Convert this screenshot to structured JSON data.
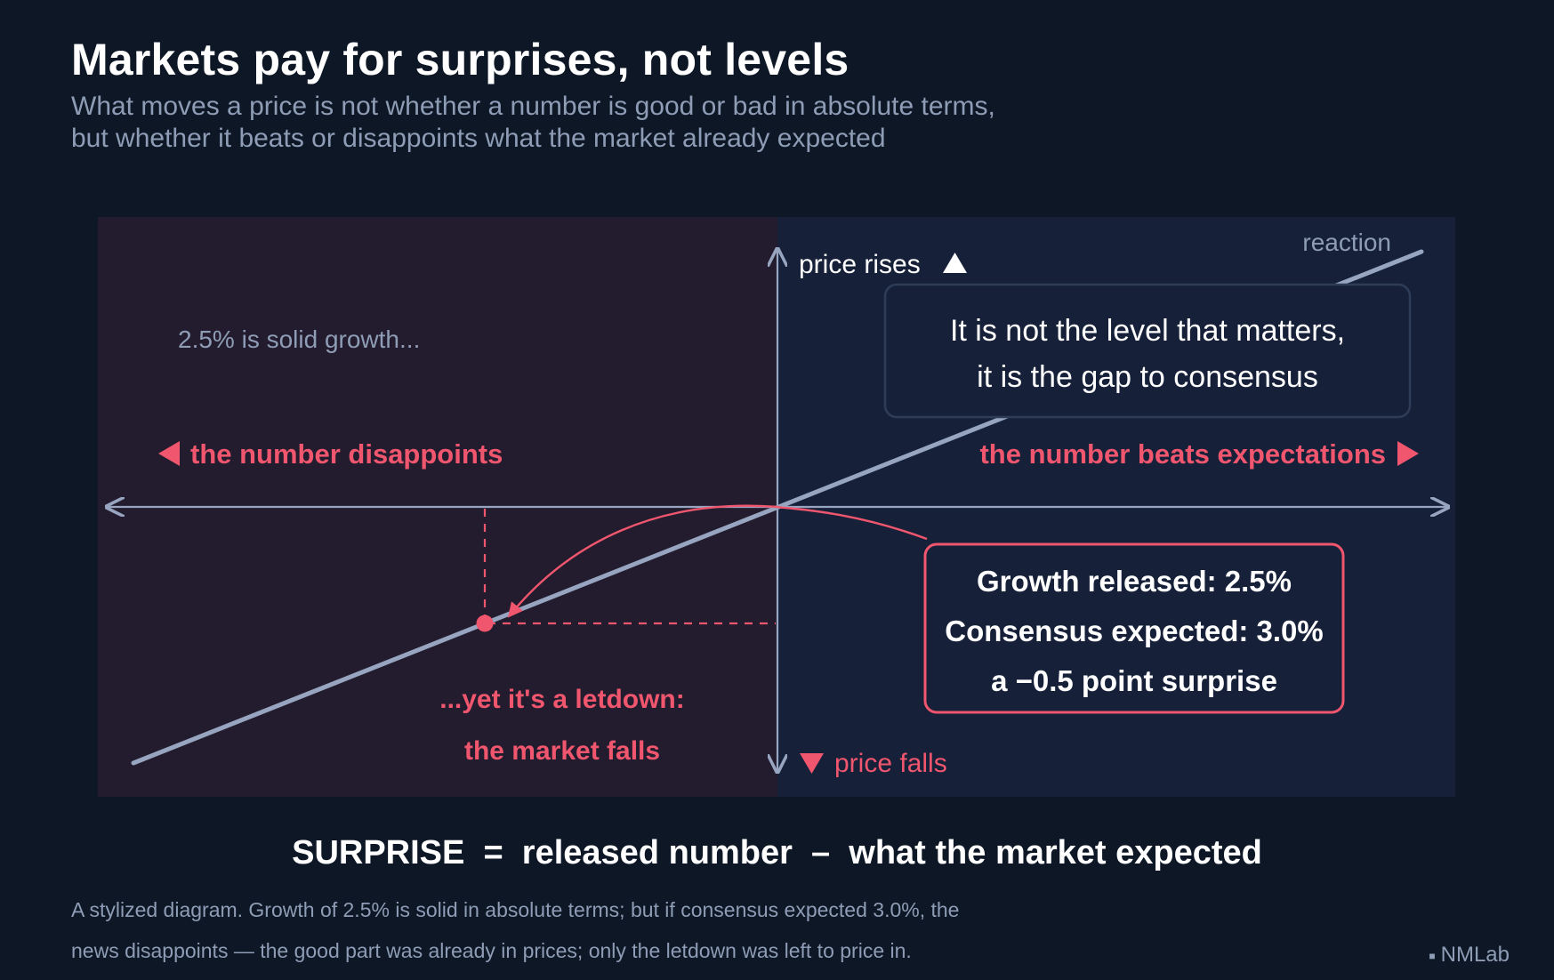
{
  "header": {
    "title": "Markets pay for surprises, not levels",
    "subtitle_lines": [
      "What moves a price is not whether a number is good or bad in absolute terms,",
      "but whether it beats or disappoints what the market already expected"
    ]
  },
  "diagram": {
    "axis_labels": {
      "price_rises": "price rises",
      "price_falls": "price falls",
      "reaction": "reaction"
    },
    "left_zone": {
      "note": "2.5% is solid growth...",
      "direction": "the number disappoints",
      "outcome_lines": [
        "...yet it's a letdown:",
        "the market falls"
      ]
    },
    "right_zone": {
      "direction": "the number beats expectations",
      "callout_lines": [
        "It is not the level that matters,",
        "it is the gap to consensus"
      ]
    },
    "info_box_lines": [
      "Growth released: 2.5%",
      "Consensus expected: 3.0%",
      "a −0.5 point surprise"
    ],
    "point": {
      "released": 2.5,
      "expected": 3.0,
      "surprise": -0.5
    },
    "colors": {
      "background": "#0d1726",
      "negative_zone": "#231c2e",
      "positive_zone": "#162039",
      "accent": "#f0566e",
      "axis": "#97a5c0",
      "muted_text": "#8e9db5"
    }
  },
  "footer": {
    "formula": "SURPRISE  =  released number  –  what the market expected",
    "caption_lines": [
      "A stylized diagram. Growth of 2.5% is solid in absolute terms; but if consensus expected 3.0%, the",
      "news disappoints — the good part was already in prices; only the letdown was left to price in."
    ],
    "brand": "NMLab"
  }
}
